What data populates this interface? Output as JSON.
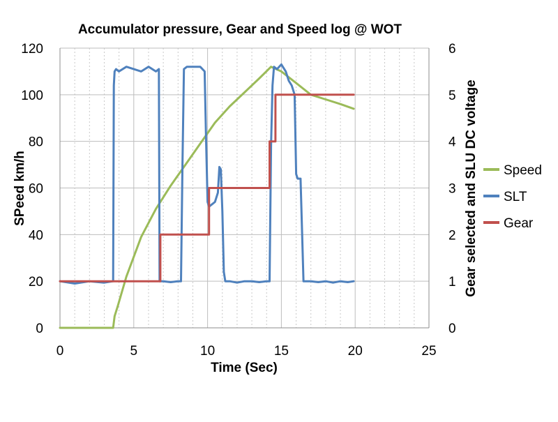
{
  "chart_data": {
    "type": "line",
    "title": "Accumulator pressure, Gear and Speed log @ WOT",
    "xlabel": "Time (Sec)",
    "ylabel": "SPeed km/h",
    "y2label": "Gear selected and SLU DC voltage",
    "xlim": [
      0,
      25
    ],
    "ylim": [
      0,
      120
    ],
    "y2lim": [
      0,
      6
    ],
    "xticks": [
      "0",
      "5",
      "10",
      "15",
      "20",
      "25"
    ],
    "yticks": [
      "0",
      "20",
      "40",
      "60",
      "80",
      "100",
      "120"
    ],
    "y2ticks": [
      "0",
      "1",
      "2",
      "3",
      "4",
      "5",
      "6"
    ],
    "grid": true,
    "legend_position": "right",
    "series": [
      {
        "name": "Speed",
        "axis": "left",
        "color": "#9BBB59",
        "x": [
          0,
          3.6,
          3.7,
          3.9,
          4.5,
          5.5,
          6.5,
          7.5,
          8.5,
          9.5,
          10.5,
          11.5,
          12.5,
          13.5,
          14.3,
          15.0,
          16.0,
          17.0,
          18.0,
          19.0,
          19.9
        ],
        "y": [
          0,
          0,
          5,
          9,
          22,
          39,
          51,
          61,
          70,
          79,
          88,
          95,
          101,
          107,
          112,
          110,
          105,
          100,
          98,
          96,
          94
        ]
      },
      {
        "name": "SLT",
        "axis": "right",
        "color": "#4F81BD",
        "x": [
          0,
          1,
          2,
          3,
          3.6,
          3.65,
          3.7,
          3.8,
          4,
          4.5,
          5,
          5.5,
          6,
          6.5,
          6.7,
          6.75,
          7,
          7.5,
          8,
          8.2,
          8.3,
          8.4,
          8.6,
          9,
          9.5,
          9.8,
          9.9,
          10.0,
          10.1,
          10.3,
          10.5,
          10.7,
          10.8,
          10.9,
          11.0,
          11.1,
          11.2,
          11.5,
          12,
          12.5,
          13,
          13.5,
          14,
          14.2,
          14.3,
          14.4,
          14.5,
          14.7,
          15,
          15.3,
          15.5,
          15.7,
          15.9,
          16.0,
          16.1,
          16.3,
          16.5,
          17,
          17.5,
          18,
          18.5,
          19,
          19.5,
          19.9
        ],
        "y": [
          1,
          0.95,
          1,
          0.97,
          1,
          5.2,
          5.5,
          5.55,
          5.5,
          5.6,
          5.55,
          5.5,
          5.6,
          5.5,
          5.55,
          1,
          1,
          0.98,
          1,
          1,
          3.5,
          5.55,
          5.6,
          5.6,
          5.6,
          5.5,
          4,
          2.7,
          2.6,
          2.65,
          2.7,
          2.9,
          3.45,
          3.4,
          2.5,
          1.2,
          1,
          1,
          0.97,
          1,
          1,
          0.98,
          1,
          1,
          3.9,
          5.2,
          5.6,
          5.55,
          5.65,
          5.5,
          5.3,
          5.2,
          5,
          3.3,
          3.2,
          3.2,
          1,
          1,
          0.98,
          1,
          0.97,
          1,
          0.98,
          1
        ]
      },
      {
        "name": "Gear",
        "axis": "right",
        "color": "#C0504D",
        "x": [
          0,
          6.8,
          6.8,
          10.1,
          10.1,
          14.2,
          14.2,
          14.6,
          14.6,
          19.9
        ],
        "y": [
          1,
          1,
          2,
          2,
          3,
          3,
          4,
          4,
          5,
          5
        ]
      }
    ]
  }
}
